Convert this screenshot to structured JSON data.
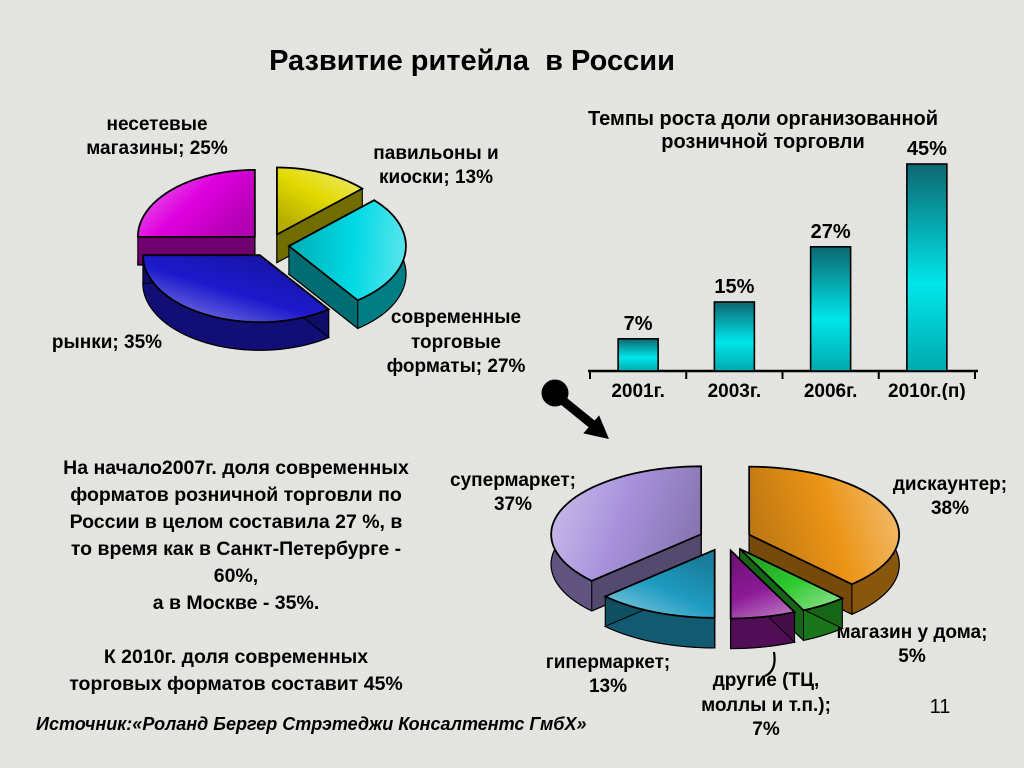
{
  "slide": {
    "title": "Развитие ритейла  в России",
    "body_text": "На начало2007г. доля современных\nформатов розничной торговли по\nРоссии в целом составила 27 %, в\nто время как в Санкт-Петербурге -\n60%,\nа в Москве - 35%.\n\nК 2010г. доля современных\nторговых форматов составит 45%",
    "source": "Источник:«Роланд Бергер Стрэтеджи Консалтентс ГмбХ»",
    "page_number": "11"
  },
  "chart_data": [
    {
      "id": "retail-structure-pie",
      "type": "pie",
      "style": "3d-exploded",
      "unit": "%",
      "start_angle_deg": 0,
      "direction": "clockwise",
      "legend": "none",
      "slices": [
        {
          "name": "павильоны и киоски",
          "value": 13,
          "color": "#e2da00",
          "label": "павильоны и\nкиоски; 13%"
        },
        {
          "name": "современные торговые форматы",
          "value": 27,
          "color": "#00d9e4",
          "label": "современные\nторговые\nформаты; 27%"
        },
        {
          "name": "рынки",
          "value": 35,
          "color": "#1d19cc",
          "label": "рынки; 35%"
        },
        {
          "name": "несетевые магазины",
          "value": 25,
          "color": "#df00df",
          "label": "несетевые\nмагазины; 25%"
        }
      ]
    },
    {
      "id": "organized-retail-growth-bar",
      "type": "bar",
      "title": "Темпы роста доли организованной\nрозничной торговли",
      "categories": [
        "2001г.",
        "2003г.",
        "2006г.",
        "2010г.(п)"
      ],
      "values": [
        7,
        15,
        27,
        45
      ],
      "value_labels": [
        "7%",
        "15%",
        "27%",
        "45%"
      ],
      "unit": "%",
      "bar_color": "#00d2d8",
      "ylim": [
        0,
        48
      ],
      "grid": false,
      "legend": "none"
    },
    {
      "id": "modern-formats-structure-pie",
      "type": "pie",
      "style": "3d-exploded",
      "unit": "%",
      "start_angle_deg": 0,
      "direction": "clockwise",
      "legend": "none",
      "slices": [
        {
          "name": "дискаунтер",
          "value": 38,
          "color": "#eb9416",
          "label": "дискаунтер;\n38%"
        },
        {
          "name": "магазин у дома",
          "value": 5,
          "color": "#2ec92e",
          "label": "магазин у дома;\n5%"
        },
        {
          "name": "другие (ТЦ, моллы и т.п.)",
          "value": 7,
          "color": "#8c1996",
          "label": "другие (ТЦ,\nмоллы и т.п.);\n7%"
        },
        {
          "name": "гипермаркет",
          "value": 13,
          "color": "#1f9cc2",
          "label": "гипермаркет;\n13%"
        },
        {
          "name": "супермаркет",
          "value": 37,
          "color": "#a891dc",
          "label": "супермаркет;\n37%"
        }
      ]
    }
  ]
}
